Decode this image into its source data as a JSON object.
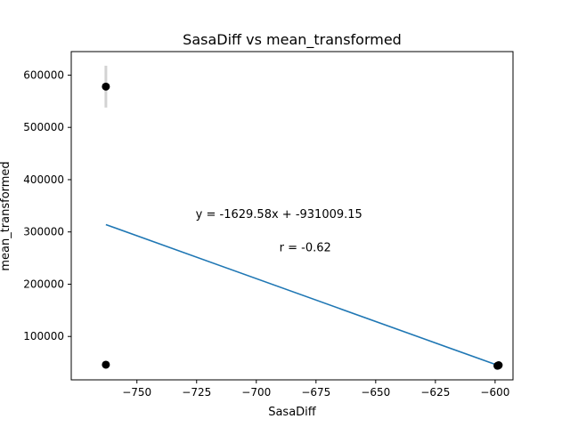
{
  "chart_data": {
    "type": "scatter",
    "title": "SasaDiff vs mean_transformed",
    "xlabel": "SasaDiff",
    "ylabel": "mean_transformed",
    "xlim": [
      -777.5,
      -592.5
    ],
    "ylim": [
      17000,
      645000
    ],
    "x_ticks": [
      -750,
      -725,
      -700,
      -675,
      -650,
      -625,
      -600
    ],
    "x_tick_labels": [
      "−750",
      "−725",
      "−700",
      "−675",
      "−650",
      "−625",
      "−600"
    ],
    "y_ticks": [
      100000,
      200000,
      300000,
      400000,
      500000,
      600000
    ],
    "y_tick_labels": [
      "100000",
      "200000",
      "300000",
      "400000",
      "500000",
      "600000"
    ],
    "grid": false,
    "points": [
      {
        "x": -763.0,
        "y": 578000,
        "err": 40000
      },
      {
        "x": -763.0,
        "y": 46000,
        "err": 0
      },
      {
        "x": -599.0,
        "y": 44000,
        "err": 3000
      },
      {
        "x": -598.5,
        "y": 45000,
        "err": 0
      }
    ],
    "fit_line": {
      "x": [
        -763.0,
        -599.0
      ],
      "y": [
        314000,
        45000
      ],
      "color": "#1f77b4"
    },
    "point_color": "#000000",
    "errorbar_color": "#d3d3d3",
    "annotations": [
      {
        "text": "y = -1629.58x + -931009.15",
        "x": -690.5,
        "y": 327000
      },
      {
        "text": "r = -0.62",
        "x": -679.5,
        "y": 263000
      }
    ]
  }
}
